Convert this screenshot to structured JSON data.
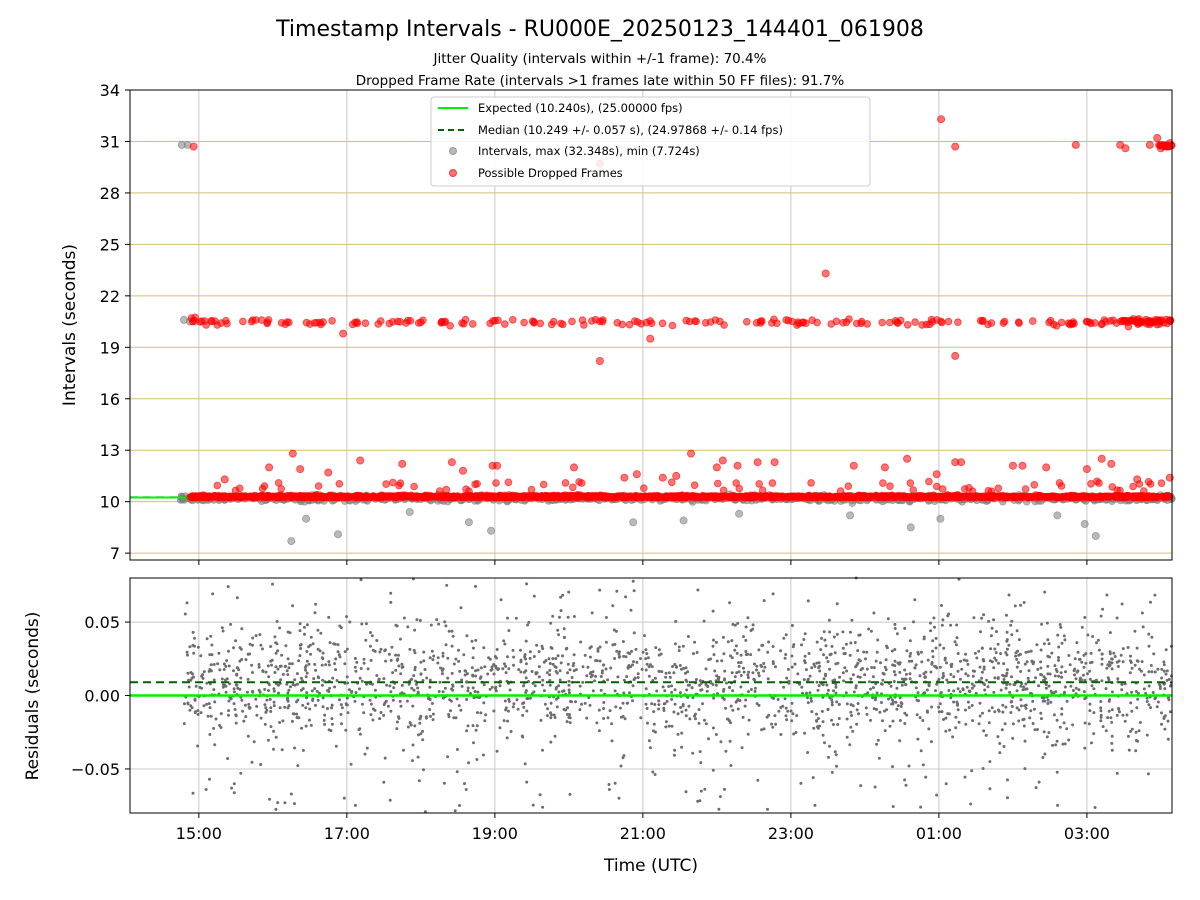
{
  "chart_data": {
    "title": "Timestamp Intervals - RU000E_20250123_144401_061908",
    "subtitle_1": "Jitter Quality (intervals within +/-1 frame): 70.4%",
    "subtitle_2": "Dropped Frame Rate (intervals >1 frames late within 50 FF files): 91.7%",
    "xlabel": "Time (UTC)",
    "x_ticks": [
      "15:00",
      "17:00",
      "19:00",
      "21:00",
      "23:00",
      "01:00",
      "03:00"
    ],
    "x_tick_hours": [
      15,
      17,
      19,
      21,
      23,
      25,
      27
    ],
    "x_range_hours": [
      14.07,
      28.15
    ],
    "data_range_hours": [
      14.75,
      28.15
    ],
    "colors": {
      "expected": "#00ee00",
      "median": "#006400",
      "intervals": "#808080",
      "dropped": "#ff0000",
      "hgrid_top": "#d4bf73",
      "vgrid": "#c8c8c8"
    },
    "top_panel": {
      "type": "scatter",
      "ylabel": "Intervals (seconds)",
      "y_ticks": [
        "7",
        "10",
        "13",
        "16",
        "19",
        "22",
        "25",
        "28",
        "31",
        "34"
      ],
      "y_tick_values": [
        7,
        10,
        13,
        16,
        19,
        22,
        25,
        28,
        31,
        34
      ],
      "ylim": [
        6.6,
        34
      ],
      "expected_interval": 10.24,
      "median_interval": 10.249,
      "intervals_max": 32.348,
      "intervals_min": 7.724,
      "legend": {
        "placement": "top-center",
        "entries": [
          {
            "label": "Expected (10.240s), (25.00000 fps)",
            "style": "solid-line",
            "color": "#00ee00"
          },
          {
            "label": "Median (10.249 +/- 0.057 s), (24.97868 +/- 0.14 fps)",
            "style": "dashed-line",
            "color": "#006400"
          },
          {
            "label": "Intervals, max (32.348s), min (7.724s)",
            "style": "marker",
            "color": "#808080"
          },
          {
            "label": "Possible Dropped Frames",
            "style": "marker",
            "color": "#ff0000"
          }
        ]
      },
      "gray_outliers": [
        [
          14.77,
          30.8
        ],
        [
          14.85,
          30.8
        ],
        [
          14.8,
          20.6
        ],
        [
          14.88,
          20.5
        ],
        [
          14.95,
          20.5
        ],
        [
          16.25,
          7.7
        ],
        [
          16.45,
          9.0
        ],
        [
          16.88,
          8.1
        ],
        [
          18.65,
          8.8
        ],
        [
          18.95,
          8.3
        ],
        [
          20.87,
          8.8
        ],
        [
          21.55,
          8.9
        ],
        [
          25.02,
          9.0
        ],
        [
          24.62,
          8.5
        ],
        [
          26.97,
          8.7
        ],
        [
          27.12,
          8.0
        ],
        [
          26.6,
          9.2
        ],
        [
          17.85,
          9.4
        ],
        [
          22.3,
          9.3
        ],
        [
          23.8,
          9.2
        ]
      ],
      "red_outliers": [
        [
          14.93,
          30.7
        ],
        [
          25.03,
          32.3
        ],
        [
          25.22,
          30.7
        ],
        [
          26.85,
          30.8
        ],
        [
          27.45,
          30.8
        ],
        [
          27.52,
          30.6
        ],
        [
          27.85,
          30.8
        ],
        [
          28.08,
          30.7
        ],
        [
          28.12,
          30.9
        ],
        [
          27.95,
          31.2
        ],
        [
          28.0,
          30.6
        ],
        [
          23.47,
          23.3
        ],
        [
          20.42,
          18.2
        ],
        [
          21.1,
          19.5
        ],
        [
          25.22,
          18.5
        ],
        [
          16.95,
          19.8
        ],
        [
          20.42,
          29.7
        ],
        [
          16.27,
          12.8
        ],
        [
          16.37,
          11.9
        ],
        [
          15.35,
          11.3
        ],
        [
          15.95,
          12.0
        ],
        [
          16.75,
          11.7
        ],
        [
          17.18,
          12.4
        ],
        [
          17.75,
          12.2
        ],
        [
          18.42,
          12.3
        ],
        [
          18.57,
          11.8
        ],
        [
          18.97,
          12.1
        ],
        [
          19.03,
          12.1
        ],
        [
          20.07,
          12.0
        ],
        [
          20.75,
          11.4
        ],
        [
          20.92,
          11.6
        ],
        [
          21.27,
          11.4
        ],
        [
          21.45,
          11.5
        ],
        [
          21.65,
          12.8
        ],
        [
          22.0,
          12.0
        ],
        [
          22.08,
          12.4
        ],
        [
          22.28,
          12.1
        ],
        [
          22.55,
          12.3
        ],
        [
          22.78,
          12.3
        ],
        [
          23.85,
          12.1
        ],
        [
          24.27,
          12.0
        ],
        [
          24.57,
          12.5
        ],
        [
          24.97,
          11.6
        ],
        [
          25.22,
          12.3
        ],
        [
          25.3,
          12.3
        ],
        [
          26.0,
          12.1
        ],
        [
          26.13,
          12.1
        ],
        [
          26.45,
          12.0
        ],
        [
          27.0,
          11.9
        ],
        [
          27.2,
          12.5
        ],
        [
          27.33,
          12.2
        ],
        [
          27.68,
          11.3
        ],
        [
          28.12,
          11.4
        ]
      ]
    },
    "bottom_panel": {
      "type": "scatter",
      "ylabel": "Residuals (seconds)",
      "y_ticks": [
        "0.05",
        "0.00",
        "−0.05"
      ],
      "y_tick_values": [
        0.05,
        0.0,
        -0.05
      ],
      "ylim": [
        -0.08,
        0.08
      ],
      "expected_residual": 0.0,
      "median_residual": 0.009
    }
  }
}
